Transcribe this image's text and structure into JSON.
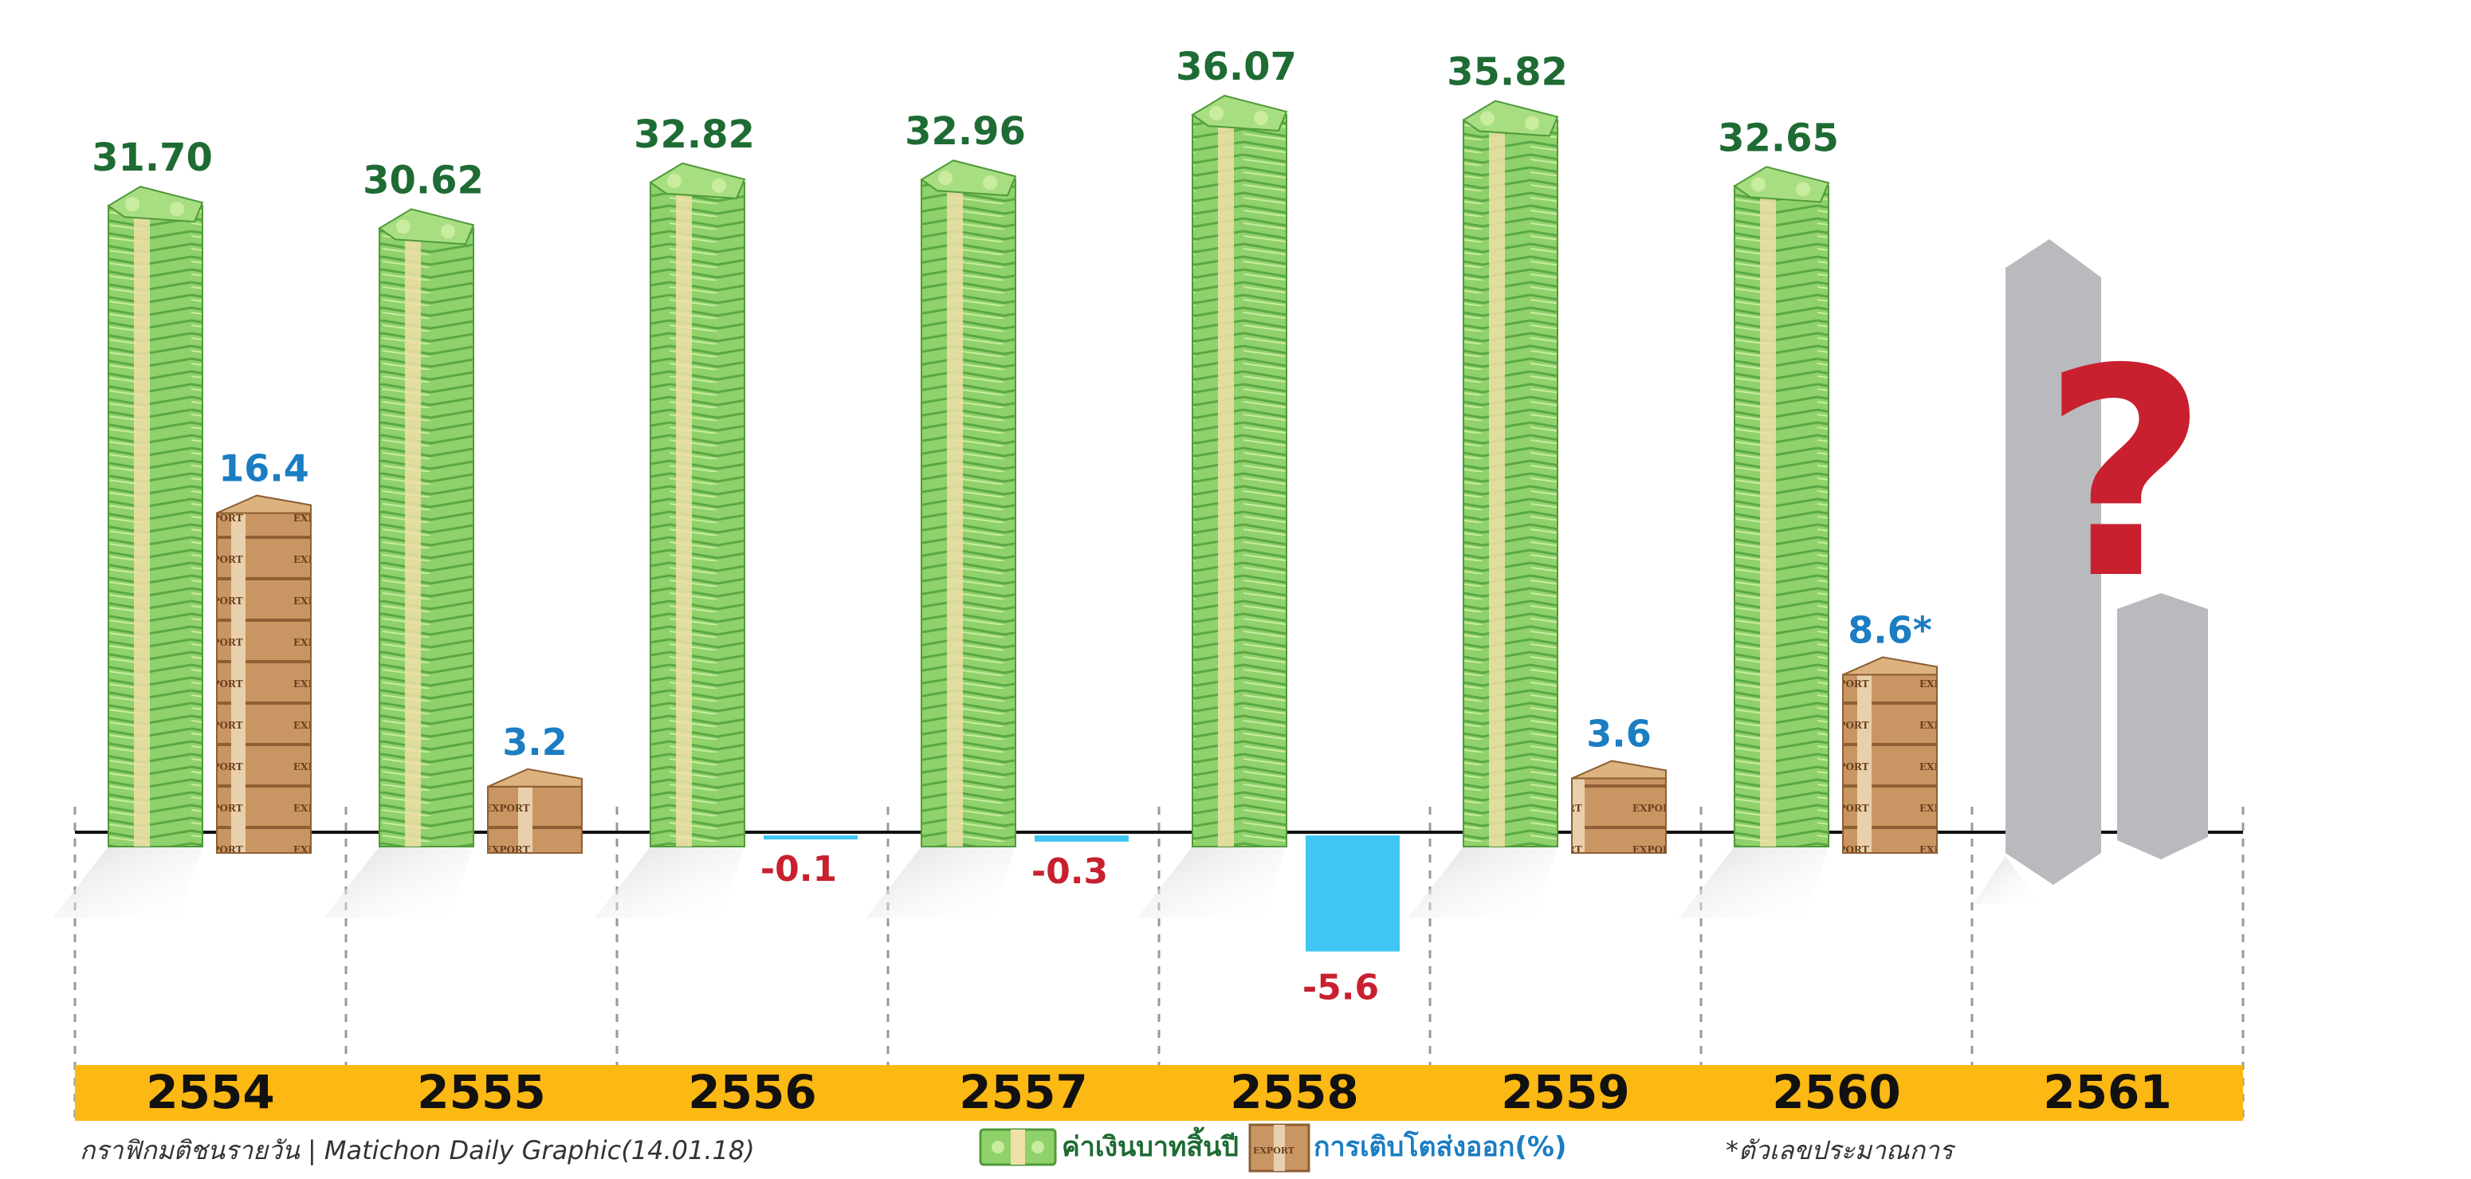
{
  "chart_data": {
    "type": "bar",
    "categories": [
      "2554",
      "2555",
      "2556",
      "2557",
      "2558",
      "2559",
      "2560",
      "2561"
    ],
    "series": [
      {
        "name": "ค่าเงินบาทสิ้นปี",
        "values": [
          31.7,
          30.62,
          32.82,
          32.96,
          36.07,
          35.82,
          32.65,
          null
        ],
        "labels": [
          "31.70",
          "30.62",
          "32.82",
          "32.96",
          "36.07",
          "35.82",
          "32.65",
          ""
        ]
      },
      {
        "name": "การเติบโตส่งออก(%)",
        "values": [
          16.4,
          3.2,
          -0.1,
          -0.3,
          -5.6,
          3.6,
          8.6,
          null
        ],
        "labels": [
          "16.4",
          "3.2",
          "-0.1",
          "-0.3",
          "-5.6",
          "3.6",
          "8.6*",
          ""
        ]
      }
    ],
    "unknown_mark": "?",
    "colors": {
      "baht": "#8fd16a",
      "baht_dark": "#4f9a3a",
      "baht_label": "#1e6b33",
      "export_box": "#c4915f",
      "export_label": "#1b7dc2",
      "negative_label": "#c8202f",
      "negative_bar": "#3fc6f2",
      "year_band": "#fcb813",
      "unknown_bar": "#b9babd",
      "question": "#c8202f"
    }
  },
  "footer": {
    "source": "กราฟิกมติชนรายวัน | Matichon  Daily  Graphic(14.01.18)",
    "legend_baht": "ค่าเงินบาทสิ้นปี",
    "legend_export": "การเติบโตส่งออก(%)",
    "note": "*ตัวเลขประมาณการ"
  }
}
